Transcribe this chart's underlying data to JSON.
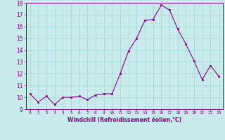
{
  "x": [
    0,
    1,
    2,
    3,
    4,
    5,
    6,
    7,
    8,
    9,
    10,
    11,
    12,
    13,
    14,
    15,
    16,
    17,
    18,
    19,
    20,
    21,
    22,
    23
  ],
  "y": [
    10.3,
    9.6,
    10.1,
    9.4,
    10.0,
    10.0,
    10.1,
    9.8,
    10.2,
    10.3,
    10.3,
    12.0,
    13.9,
    15.0,
    16.5,
    16.6,
    17.8,
    17.4,
    15.8,
    14.5,
    13.1,
    11.5,
    12.7,
    11.8
  ],
  "xlabel": "Windchill (Refroidissement éolien,°C)",
  "ylim": [
    9,
    18
  ],
  "xlim_min": -0.5,
  "xlim_max": 23.5,
  "yticks": [
    9,
    10,
    11,
    12,
    13,
    14,
    15,
    16,
    17,
    18
  ],
  "xticks": [
    0,
    1,
    2,
    3,
    4,
    5,
    6,
    7,
    8,
    9,
    10,
    11,
    12,
    13,
    14,
    15,
    16,
    17,
    18,
    19,
    20,
    21,
    22,
    23
  ],
  "line_color": "#880088",
  "marker_color": "#880088",
  "bg_color": "#c8eaea",
  "grid_color": "#a8d8d8",
  "xlabel_color": "#880088",
  "tick_color": "#880088",
  "spine_color": "#880088"
}
